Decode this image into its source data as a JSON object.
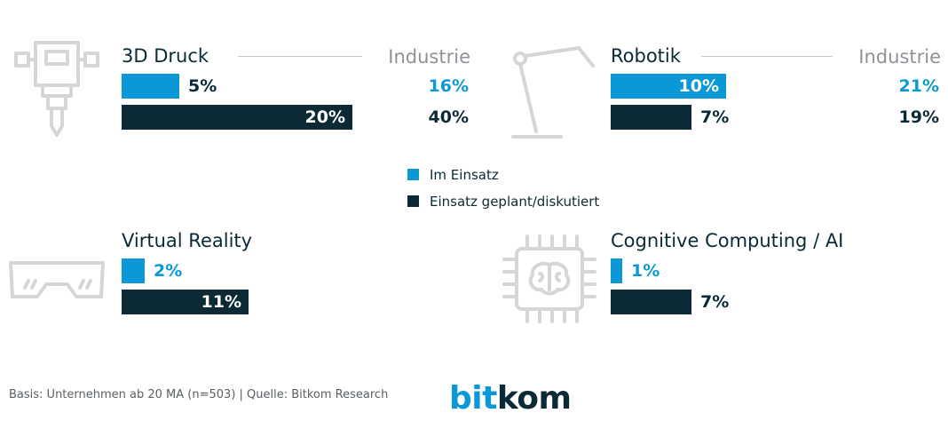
{
  "chart_data": {
    "type": "bar",
    "unit": "%",
    "series": [
      {
        "name": "Im Einsatz",
        "color": "#0a99d6"
      },
      {
        "name": "Einsatz geplant/diskutiert",
        "color": "#0b2a36"
      }
    ],
    "panels": [
      {
        "title": "3D Druck",
        "icon": "jackhammer-icon",
        "values": [
          5,
          20
        ],
        "labels": [
          "5%",
          "20%"
        ],
        "industry_label": "Industrie",
        "industry_values": [
          "16%",
          "40%"
        ]
      },
      {
        "title": "Robotik",
        "icon": "robot-arm-icon",
        "values": [
          10,
          7
        ],
        "labels": [
          "10%",
          "7%"
        ],
        "industry_label": "Industrie",
        "industry_values": [
          "21%",
          "19%"
        ]
      },
      {
        "title": "Virtual Reality",
        "icon": "vr-goggles-icon",
        "values": [
          2,
          11
        ],
        "labels": [
          "2%",
          "11%"
        ]
      },
      {
        "title": "Cognitive Computing / AI",
        "icon": "ai-chip-icon",
        "values": [
          1,
          7
        ],
        "labels": [
          "1%",
          "7%"
        ]
      }
    ]
  },
  "legend": {
    "im_einsatz": "Im Einsatz",
    "geplant": "Einsatz geplant/diskutiert"
  },
  "footer": {
    "source": "Basis: Unternehmen ab 20 MA (n=503) | Quelle: Bitkom Research",
    "logo_part1": "bit",
    "logo_part2": "kom"
  },
  "colors": {
    "blue": "#0a99d6",
    "dark": "#0b2a36",
    "icon_gray": "#d4d6d8",
    "industry_gray": "#8f9397"
  }
}
